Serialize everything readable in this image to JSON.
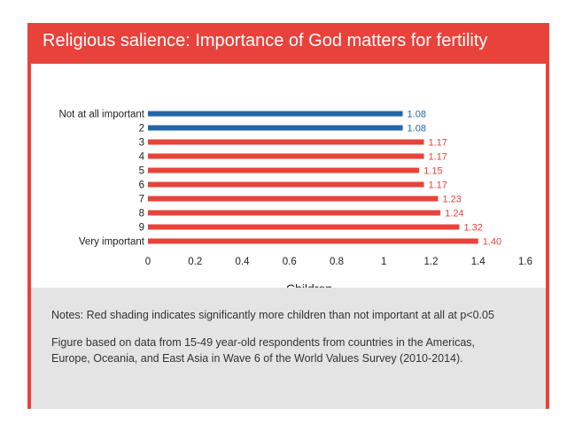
{
  "title": "Religious salience: Importance of God matters for fertility",
  "colors": {
    "accent": "#e8423a",
    "not_significant": "#2566a8",
    "significant": "#e8423a",
    "notes_bg": "#e4e4e4"
  },
  "chart_data": {
    "type": "bar",
    "orientation": "horizontal",
    "categories": [
      "Not at all important",
      "2",
      "3",
      "4",
      "5",
      "6",
      "7",
      "8",
      "9",
      "Very important"
    ],
    "values": [
      1.08,
      1.08,
      1.17,
      1.17,
      1.15,
      1.17,
      1.23,
      1.24,
      1.32,
      1.4
    ],
    "value_labels": [
      "1.08",
      "1.08",
      "1.17",
      "1.17",
      "1.15",
      "1.17",
      "1.23",
      "1.24",
      "1.32",
      "1.40"
    ],
    "significant": [
      false,
      false,
      true,
      true,
      true,
      true,
      true,
      true,
      true,
      true
    ],
    "xlabel": "Children",
    "xlim": [
      0,
      1.6
    ],
    "xticks": [
      "0",
      "0.2",
      "0.4",
      "0.6",
      "0.8",
      "1",
      "1.2",
      "1.4",
      "1.6"
    ],
    "grid": false,
    "legend": "none"
  },
  "notes": {
    "line1": "Notes: Red shading indicates significantly more children than not important at all at p<0.05",
    "line2a": "Figure based on data from 15-49 year-old respondents from countries in the Americas,",
    "line2b": "Europe, Oceania, and East Asia in Wave 6 of the World Values Survey (2010-2014)."
  }
}
